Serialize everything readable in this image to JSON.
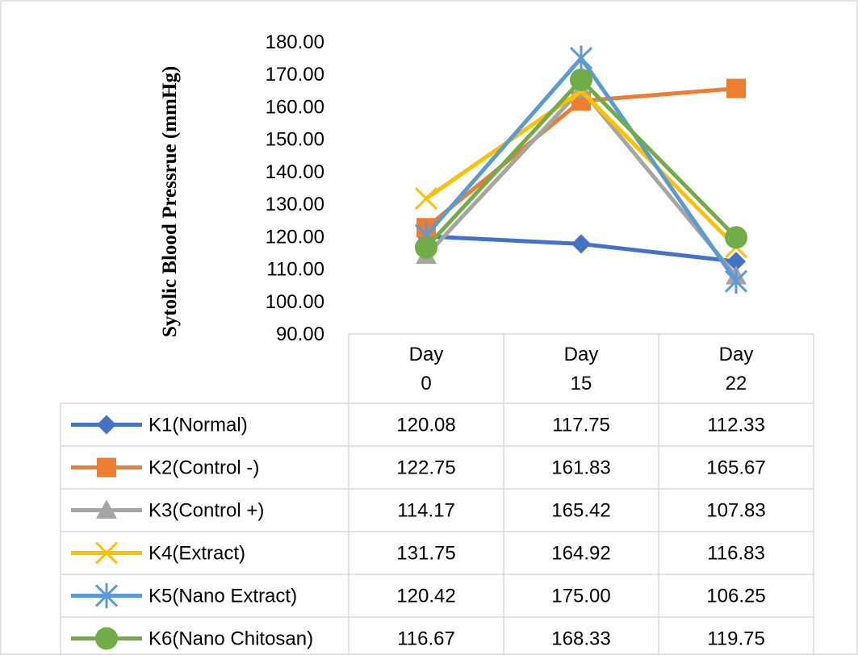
{
  "chart_data": {
    "type": "line",
    "title": "",
    "xlabel": "",
    "ylabel": "Sytolic Blood Pressrue (mmHg)",
    "ylim": [
      90,
      180
    ],
    "ytick_step": 10,
    "ytick_labels": [
      "90.00",
      "100.00",
      "110.00",
      "120.00",
      "130.00",
      "140.00",
      "150.00",
      "160.00",
      "170.00",
      "180.00"
    ],
    "categories": [
      [
        "Day",
        "0"
      ],
      [
        "Day",
        "15"
      ],
      [
        "Day",
        "22"
      ]
    ],
    "grid": false,
    "legend": "data-table",
    "series": [
      {
        "name": "K1(Normal)",
        "color": "#4472c4",
        "marker": "diamond",
        "values": [
          120.08,
          117.75,
          112.33
        ],
        "labels": [
          "120.08",
          "117.75",
          "112.33"
        ]
      },
      {
        "name": "K2(Control -)",
        "color": "#ed7d31",
        "marker": "square",
        "values": [
          122.75,
          161.83,
          165.67
        ],
        "labels": [
          "122.75",
          "161.83",
          "165.67"
        ]
      },
      {
        "name": "K3(Control +)",
        "color": "#a5a5a5",
        "marker": "triangle",
        "values": [
          114.17,
          165.42,
          107.83
        ],
        "labels": [
          "114.17",
          "165.42",
          "107.83"
        ]
      },
      {
        "name": "K4(Extract)",
        "color": "#ffc000",
        "marker": "x",
        "values": [
          131.75,
          164.92,
          116.83
        ],
        "labels": [
          "131.75",
          "164.92",
          "116.83"
        ]
      },
      {
        "name": "K5(Nano Extract)",
        "color": "#5b9bd5",
        "marker": "star",
        "values": [
          120.42,
          175.0,
          106.25
        ],
        "labels": [
          "120.42",
          "175.00",
          "106.25"
        ]
      },
      {
        "name": "K6(Nano Chitosan)",
        "color": "#70ad47",
        "marker": "circle",
        "values": [
          116.67,
          168.33,
          119.75
        ],
        "labels": [
          "116.67",
          "168.33",
          "119.75"
        ]
      }
    ]
  }
}
